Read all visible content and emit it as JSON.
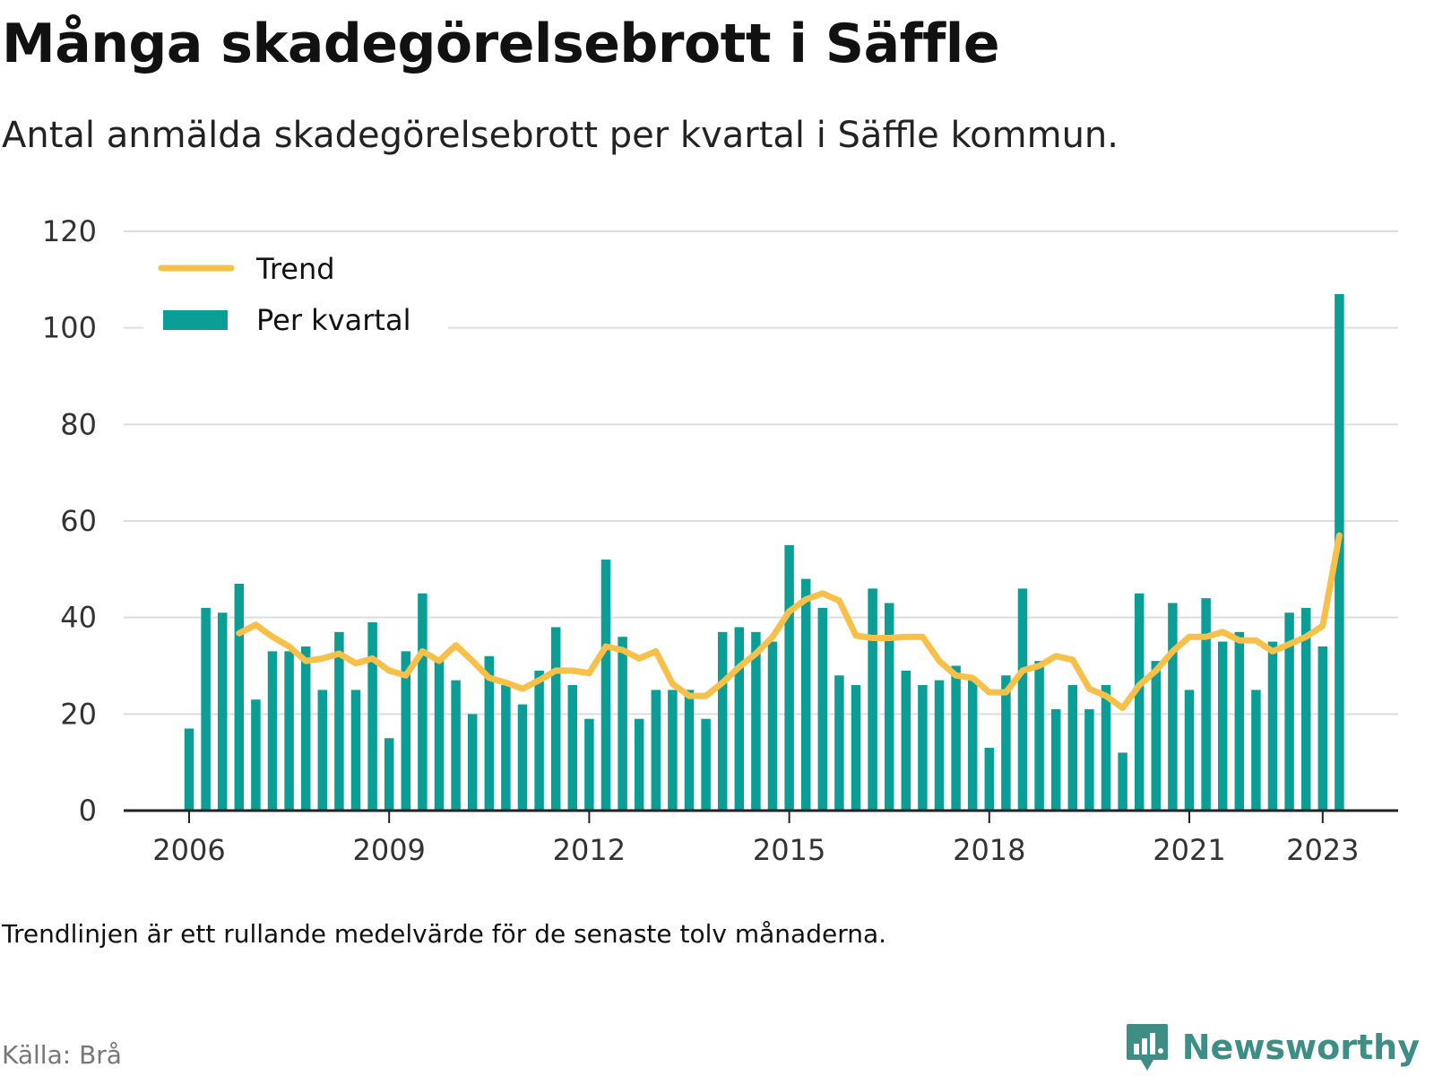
{
  "header": {
    "title": "Många skadegörelsebrott i Säffle",
    "subtitle": "Antal anmälda skadegörelsebrott per kvartal i Säffle kommun."
  },
  "footer": {
    "note": "Trendlinjen är ett rullande medelvärde för de senaste tolv månaderna.",
    "source": "Källa: Brå",
    "brand": "Newsworthy"
  },
  "colors": {
    "bars": "#0b9e96",
    "trend": "#f7c049",
    "grid": "#dddddd",
    "axis": "#222222",
    "brand": "#3e8e86"
  },
  "chart_data": {
    "type": "bar",
    "x_axis": {
      "start_year": 2006,
      "ticks": [
        "2006",
        "2009",
        "2012",
        "2015",
        "2018",
        "2021",
        "2023"
      ]
    },
    "ylim": [
      0,
      120
    ],
    "yticks": [
      0,
      20,
      40,
      60,
      80,
      100,
      120
    ],
    "grid": true,
    "legend_position": "top-left",
    "series": [
      {
        "name": "Per kvartal",
        "type": "bar",
        "values": [
          17,
          42,
          41,
          47,
          23,
          33,
          33,
          34,
          25,
          37,
          25,
          39,
          15,
          33,
          45,
          31,
          27,
          20,
          32,
          26,
          22,
          29,
          38,
          26,
          19,
          52,
          36,
          19,
          25,
          25,
          25,
          19,
          37,
          38,
          37,
          35,
          55,
          48,
          42,
          28,
          26,
          46,
          43,
          29,
          26,
          27,
          30,
          27,
          13,
          28,
          46,
          31,
          21,
          26,
          21,
          26,
          12,
          45,
          31,
          43,
          25,
          44,
          35,
          37,
          25,
          35,
          41,
          42,
          34,
          107
        ]
      },
      {
        "name": "Trend",
        "type": "line",
        "start_index": 3,
        "values": [
          36.75,
          38.5,
          36,
          34,
          31,
          31.5,
          32.5,
          30.5,
          31.5,
          29,
          28,
          33,
          31,
          34.25,
          31,
          27.5,
          26.5,
          25.25,
          27,
          29,
          29,
          28.5,
          34,
          33.25,
          31.5,
          33,
          26.25,
          23.75,
          23.75,
          26.5,
          29.75,
          32.5,
          36,
          41.25,
          43.75,
          45,
          43.5,
          36.25,
          35.75,
          35.75,
          36,
          36,
          31,
          28,
          27.5,
          24.5,
          24.5,
          29,
          30,
          32,
          31.25,
          25.25,
          23.75,
          21.25,
          26,
          29,
          33,
          36,
          36,
          37,
          35.25,
          35.25,
          33,
          34.5,
          36,
          38.25,
          57
        ]
      }
    ]
  }
}
